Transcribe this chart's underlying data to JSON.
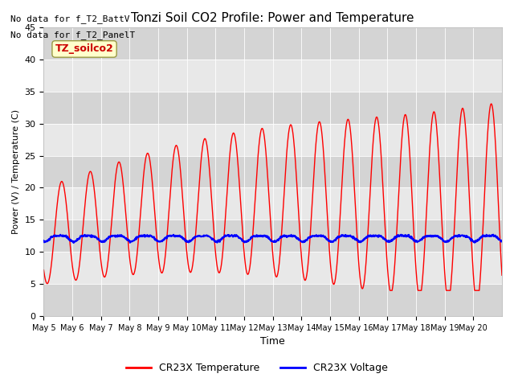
{
  "title": "Tonzi Soil CO2 Profile: Power and Temperature",
  "ylabel": "Power (V) / Temperature (C)",
  "xlabel": "Time",
  "ylim": [
    0,
    45
  ],
  "yticks": [
    0,
    5,
    10,
    15,
    20,
    25,
    30,
    35,
    40,
    45
  ],
  "text_no_data1": "No data for f_T2_BattV",
  "text_no_data2": "No data for f_T2_PanelT",
  "legend_label": "TZ_soilco2",
  "legend_temp": "CR23X Temperature",
  "legend_volt": "CR23X Voltage",
  "red_color": "#ff0000",
  "blue_color": "#0000ff",
  "xtick_labels": [
    "May 5",
    "May 6",
    "May 7",
    "May 8",
    "May 9",
    "May 10",
    "May 11",
    "May 12",
    "May 13",
    "May 14",
    "May 15",
    "May 16",
    "May 17",
    "May 18",
    "May 19",
    "May 20"
  ],
  "volt_base": 12.2,
  "volt_amplitude": 0.6
}
